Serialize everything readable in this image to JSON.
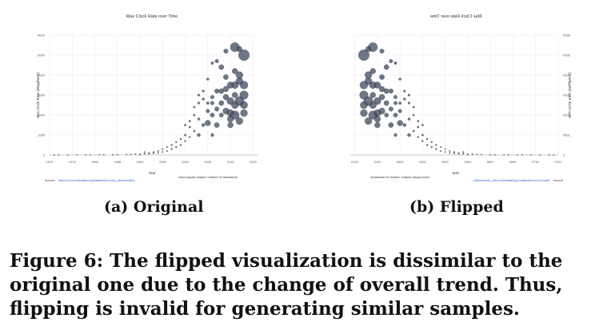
{
  "chart_data": [
    {
      "type": "scatter",
      "title": "Max Clock Rate over Time",
      "xlabel": "Year",
      "ylabel": "Max Clock Rate (Megahertz)",
      "xlim": [
        1970,
        2016
      ],
      "ylim": [
        0,
        6000
      ],
      "xticks": [
        "1970",
        "1975",
        "1980",
        "1985",
        "1990",
        "1995",
        "2000",
        "2005",
        "2010",
        "2015"
      ],
      "yticks": [
        "0",
        "1000",
        "2000",
        "3000",
        "4000",
        "5000",
        "6000"
      ],
      "size_note": "Area equals relative number of transistors",
      "source_label": "Source:",
      "source_link": "https://ourworldindata.org/datasets/moores_law/activities",
      "mirrored": false,
      "points": [
        {
          "x": 1971,
          "y": 1,
          "s": 0.4
        },
        {
          "x": 1972,
          "y": 1,
          "s": 0.4
        },
        {
          "x": 1974,
          "y": 2,
          "s": 0.4
        },
        {
          "x": 1976,
          "y": 3,
          "s": 0.4
        },
        {
          "x": 1978,
          "y": 5,
          "s": 0.4
        },
        {
          "x": 1979,
          "y": 8,
          "s": 0.4
        },
        {
          "x": 1981,
          "y": 10,
          "s": 0.4
        },
        {
          "x": 1982,
          "y": 12,
          "s": 0.4
        },
        {
          "x": 1984,
          "y": 16,
          "s": 0.4
        },
        {
          "x": 1985,
          "y": 20,
          "s": 0.4
        },
        {
          "x": 1987,
          "y": 25,
          "s": 0.4
        },
        {
          "x": 1988,
          "y": 33,
          "s": 0.4
        },
        {
          "x": 1989,
          "y": 50,
          "s": 0.5
        },
        {
          "x": 1990,
          "y": 40,
          "s": 0.5
        },
        {
          "x": 1991,
          "y": 66,
          "s": 0.5
        },
        {
          "x": 1991,
          "y": 150,
          "s": 0.5
        },
        {
          "x": 1992,
          "y": 100,
          "s": 0.5
        },
        {
          "x": 1992,
          "y": 66,
          "s": 0.5
        },
        {
          "x": 1993,
          "y": 150,
          "s": 0.5
        },
        {
          "x": 1993,
          "y": 90,
          "s": 0.5
        },
        {
          "x": 1994,
          "y": 200,
          "s": 0.5
        },
        {
          "x": 1994,
          "y": 100,
          "s": 0.5
        },
        {
          "x": 1995,
          "y": 300,
          "s": 0.5
        },
        {
          "x": 1995,
          "y": 150,
          "s": 0.5
        },
        {
          "x": 1996,
          "y": 400,
          "s": 0.5
        },
        {
          "x": 1996,
          "y": 200,
          "s": 0.5
        },
        {
          "x": 1997,
          "y": 500,
          "s": 0.6
        },
        {
          "x": 1997,
          "y": 300,
          "s": 0.6
        },
        {
          "x": 1998,
          "y": 650,
          "s": 0.6
        },
        {
          "x": 1998,
          "y": 400,
          "s": 0.6
        },
        {
          "x": 1999,
          "y": 800,
          "s": 0.6
        },
        {
          "x": 1999,
          "y": 500,
          "s": 0.6
        },
        {
          "x": 2000,
          "y": 1000,
          "s": 0.7
        },
        {
          "x": 2000,
          "y": 1500,
          "s": 0.7
        },
        {
          "x": 2000,
          "y": 700,
          "s": 0.6
        },
        {
          "x": 2001,
          "y": 1400,
          "s": 0.7
        },
        {
          "x": 2001,
          "y": 1700,
          "s": 0.7
        },
        {
          "x": 2001,
          "y": 900,
          "s": 0.6
        },
        {
          "x": 2002,
          "y": 2000,
          "s": 0.7
        },
        {
          "x": 2002,
          "y": 2400,
          "s": 0.7
        },
        {
          "x": 2002,
          "y": 1200,
          "s": 0.7
        },
        {
          "x": 2003,
          "y": 1000,
          "s": 1.2
        },
        {
          "x": 2003,
          "y": 1800,
          "s": 0.9
        },
        {
          "x": 2003,
          "y": 2600,
          "s": 0.8
        },
        {
          "x": 2003,
          "y": 3000,
          "s": 0.8
        },
        {
          "x": 2004,
          "y": 3200,
          "s": 0.8
        },
        {
          "x": 2004,
          "y": 2800,
          "s": 0.9
        },
        {
          "x": 2004,
          "y": 1500,
          "s": 1.2
        },
        {
          "x": 2005,
          "y": 3800,
          "s": 0.9
        },
        {
          "x": 2005,
          "y": 2200,
          "s": 1.3
        },
        {
          "x": 2005,
          "y": 2600,
          "s": 1.0
        },
        {
          "x": 2005,
          "y": 1600,
          "s": 2.0
        },
        {
          "x": 2006,
          "y": 2900,
          "s": 1.3
        },
        {
          "x": 2006,
          "y": 2600,
          "s": 1.3
        },
        {
          "x": 2006,
          "y": 2000,
          "s": 1.5
        },
        {
          "x": 2006,
          "y": 4600,
          "s": 1.0
        },
        {
          "x": 2006,
          "y": 1000,
          "s": 1.1
        },
        {
          "x": 2007,
          "y": 3200,
          "s": 1.6
        },
        {
          "x": 2007,
          "y": 4700,
          "s": 1.3
        },
        {
          "x": 2007,
          "y": 2300,
          "s": 1.6
        },
        {
          "x": 2007,
          "y": 1500,
          "s": 1.8
        },
        {
          "x": 2008,
          "y": 3200,
          "s": 1.8
        },
        {
          "x": 2008,
          "y": 2600,
          "s": 1.8
        },
        {
          "x": 2008,
          "y": 4400,
          "s": 1.8
        },
        {
          "x": 2008,
          "y": 2000,
          "s": 1.5
        },
        {
          "x": 2009,
          "y": 3300,
          "s": 2.0
        },
        {
          "x": 2009,
          "y": 2900,
          "s": 2.0
        },
        {
          "x": 2009,
          "y": 2200,
          "s": 2.2
        },
        {
          "x": 2009,
          "y": 5200,
          "s": 1.6
        },
        {
          "x": 2009,
          "y": 3900,
          "s": 1.8
        },
        {
          "x": 2010,
          "y": 3500,
          "s": 2.3
        },
        {
          "x": 2010,
          "y": 2700,
          "s": 2.5
        },
        {
          "x": 2010,
          "y": 1800,
          "s": 2.2
        },
        {
          "x": 2010,
          "y": 2100,
          "s": 2.5
        },
        {
          "x": 2010,
          "y": 1500,
          "s": 2.0
        },
        {
          "x": 2011,
          "y": 2500,
          "s": 2.5
        },
        {
          "x": 2011,
          "y": 3000,
          "s": 2.0
        },
        {
          "x": 2011,
          "y": 4200,
          "s": 2.0
        },
        {
          "x": 2011,
          "y": 2000,
          "s": 3.0
        },
        {
          "x": 2011,
          "y": 3500,
          "s": 2.5
        },
        {
          "x": 2011,
          "y": 5400,
          "s": 3.2
        },
        {
          "x": 2012,
          "y": 5300,
          "s": 2.0
        },
        {
          "x": 2012,
          "y": 2700,
          "s": 3.2
        },
        {
          "x": 2012,
          "y": 1700,
          "s": 2.5
        },
        {
          "x": 2012,
          "y": 3700,
          "s": 2.5
        },
        {
          "x": 2012,
          "y": 4000,
          "s": 2.5
        },
        {
          "x": 2013,
          "y": 3000,
          "s": 3.0
        },
        {
          "x": 2013,
          "y": 5000,
          "s": 3.8
        },
        {
          "x": 2013,
          "y": 2500,
          "s": 2.6
        },
        {
          "x": 2013,
          "y": 3500,
          "s": 2.8
        },
        {
          "x": 2013,
          "y": 2100,
          "s": 2.5
        }
      ]
    },
    {
      "type": "scatter",
      "title": "Max Clock Rate over Time",
      "xlabel": "Year",
      "ylabel": "Max Clock Rate (Megahertz)",
      "mirrored": true,
      "note": "same chart mirrored horizontally"
    }
  ],
  "captions": {
    "sub_a": "(a) Original",
    "sub_b": "(b) Flipped",
    "figure": "Figure 6: The flipped visualization is dissimilar to the original one due to the change of overall trend. Thus, flipping is invalid for generating similar samples."
  },
  "colors": {
    "point": "#3d4a5c",
    "grid": "#ececec",
    "axis_text": "#333333",
    "link": "#3366cc"
  }
}
